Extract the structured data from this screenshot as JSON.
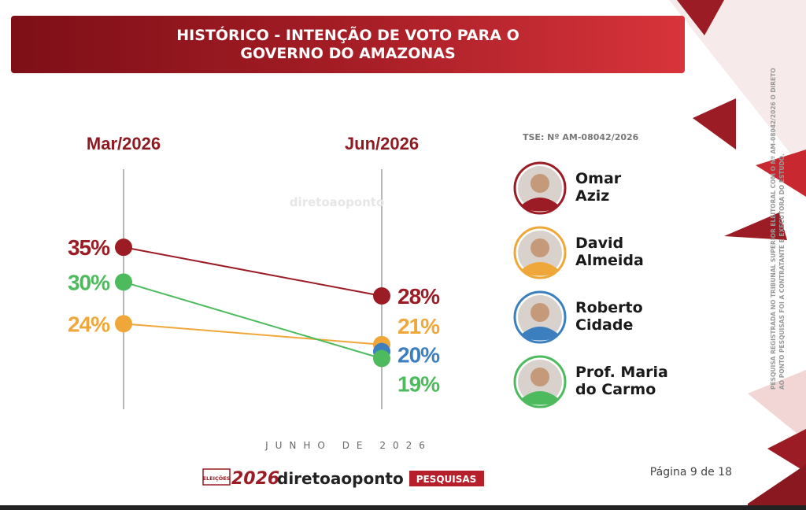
{
  "chart_data": {
    "type": "line",
    "title": "HISTÓRICO - INTENÇÃO DE VOTO PARA O GOVERNO DO AMAZONAS",
    "categories": [
      "Mar/2026",
      "Jun/2026"
    ],
    "series": [
      {
        "name": "Omar Aziz",
        "color": "#9b1c24",
        "values": [
          35,
          28
        ],
        "value_labels": [
          "35%",
          "28%"
        ]
      },
      {
        "name": "David Almeida",
        "color": "#f0a73a",
        "values": [
          24,
          21
        ],
        "value_labels": [
          "24%",
          "21%"
        ]
      },
      {
        "name": "Roberto Cidade",
        "color": "#3c7fbf",
        "values": [
          null,
          20
        ],
        "value_labels": [
          null,
          "20%"
        ]
      },
      {
        "name": "Prof. Maria do Carmo",
        "color": "#4dbb5d",
        "values": [
          30,
          19
        ],
        "value_labels": [
          "30%",
          "19%"
        ]
      }
    ],
    "ylim": [
      10,
      40
    ],
    "registration": "TSE: Nº AM-08042/2026",
    "date": "JUNHO DE 2026",
    "page": "Página 9 de 18",
    "footnote": "PESQUISA REGISTRADA NO TRIBUNAL SUPERIOR ELEITORAL COM O Nº AM-08042/2026 O DIRETO AO PONTO PESQUISAS FOI A CONTRATANTE E EXECUTORA DO ESTUDO.",
    "brand": {
      "badge": "ELEIÇÕES",
      "year": "2026",
      "name": "diretoaoponto",
      "tag": "PESQUISAS"
    }
  }
}
